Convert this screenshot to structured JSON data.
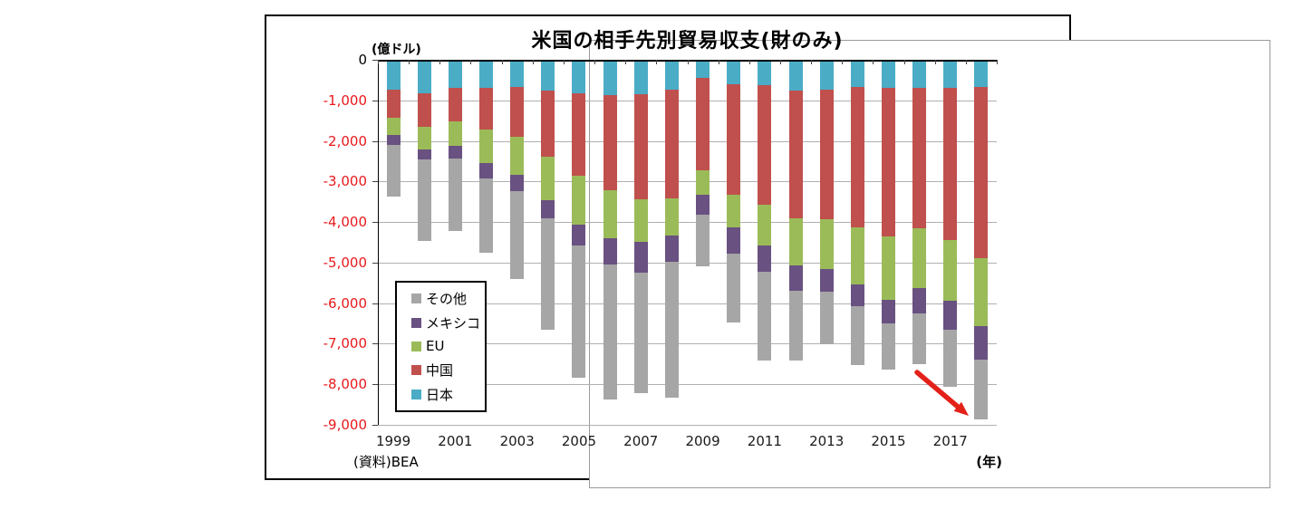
{
  "chart": {
    "title": "米国の相手先別貿易収支(財のみ)",
    "unit_label": "(億ドル)",
    "source_label": "(資料)BEA",
    "xaxis_unit_label": "(年)",
    "background_color": "#FFFFFF",
    "border_color": "#000000",
    "gridline_color": "#B0B0B0",
    "negative_tick_color": "#E8191C",
    "annotation_arrow_color": "#E32119"
  },
  "chart_data": {
    "type": "bar",
    "stacked": true,
    "title": "米国の相手先別貿易収支(財のみ)",
    "ylabel": "(億ドル)",
    "xlabel": "(年)",
    "ylim": [
      -9000,
      0
    ],
    "grid": true,
    "legend_position": "inside-lower-left",
    "categories": [
      1999,
      2000,
      2001,
      2002,
      2003,
      2004,
      2005,
      2006,
      2007,
      2008,
      2009,
      2010,
      2011,
      2012,
      2013,
      2014,
      2015,
      2016,
      2017,
      2018
    ],
    "xtick_labels_shown": [
      "1999",
      "2001",
      "2003",
      "2005",
      "2007",
      "2009",
      "2011",
      "2013",
      "2015",
      "2017"
    ],
    "ytick_labels": [
      "0",
      "-1,000",
      "-2,000",
      "-3,000",
      "-4,000",
      "-5,000",
      "-6,000",
      "-7,000",
      "-8,000",
      "-9,000"
    ],
    "series": [
      {
        "name": "その他",
        "color": "#A6A6A6",
        "values": [
          -1280,
          -2010,
          -1800,
          -1830,
          -2160,
          -2730,
          -3260,
          -3330,
          -2960,
          -3330,
          -1290,
          -1690,
          -2180,
          -1720,
          -1300,
          -1440,
          -1130,
          -1240,
          -1410,
          -1480
        ]
      },
      {
        "name": "メキシコ",
        "color": "#695181",
        "values": [
          -230,
          -250,
          -300,
          -370,
          -410,
          -450,
          -500,
          -650,
          -750,
          -650,
          -480,
          -660,
          -650,
          -620,
          -550,
          -540,
          -580,
          -630,
          -710,
          -820
        ]
      },
      {
        "name": "EU",
        "color": "#9BBB59",
        "values": [
          -440,
          -550,
          -610,
          -820,
          -940,
          -1090,
          -1220,
          -1170,
          -1070,
          -930,
          -610,
          -800,
          -1000,
          -1160,
          -1250,
          -1410,
          -1560,
          -1470,
          -1510,
          -1690
        ]
      },
      {
        "name": "中国",
        "color": "#C0504D",
        "values": [
          -690,
          -840,
          -830,
          -1030,
          -1240,
          -1620,
          -2020,
          -2340,
          -2590,
          -2680,
          -2270,
          -2730,
          -2950,
          -3150,
          -3190,
          -3450,
          -3670,
          -3470,
          -3750,
          -4200
        ]
      },
      {
        "name": "日本",
        "color": "#4BACC6",
        "values": [
          -730,
          -820,
          -690,
          -700,
          -660,
          -760,
          -830,
          -880,
          -840,
          -730,
          -450,
          -600,
          -630,
          -760,
          -730,
          -680,
          -690,
          -690,
          -690,
          -680
        ]
      }
    ],
    "stack_order_top_to_bottom": [
      "日本",
      "中国",
      "EU",
      "メキシコ",
      "その他"
    ],
    "annotation": {
      "type": "arrow",
      "target": "2018 bar bottom",
      "color": "#E32119"
    }
  }
}
